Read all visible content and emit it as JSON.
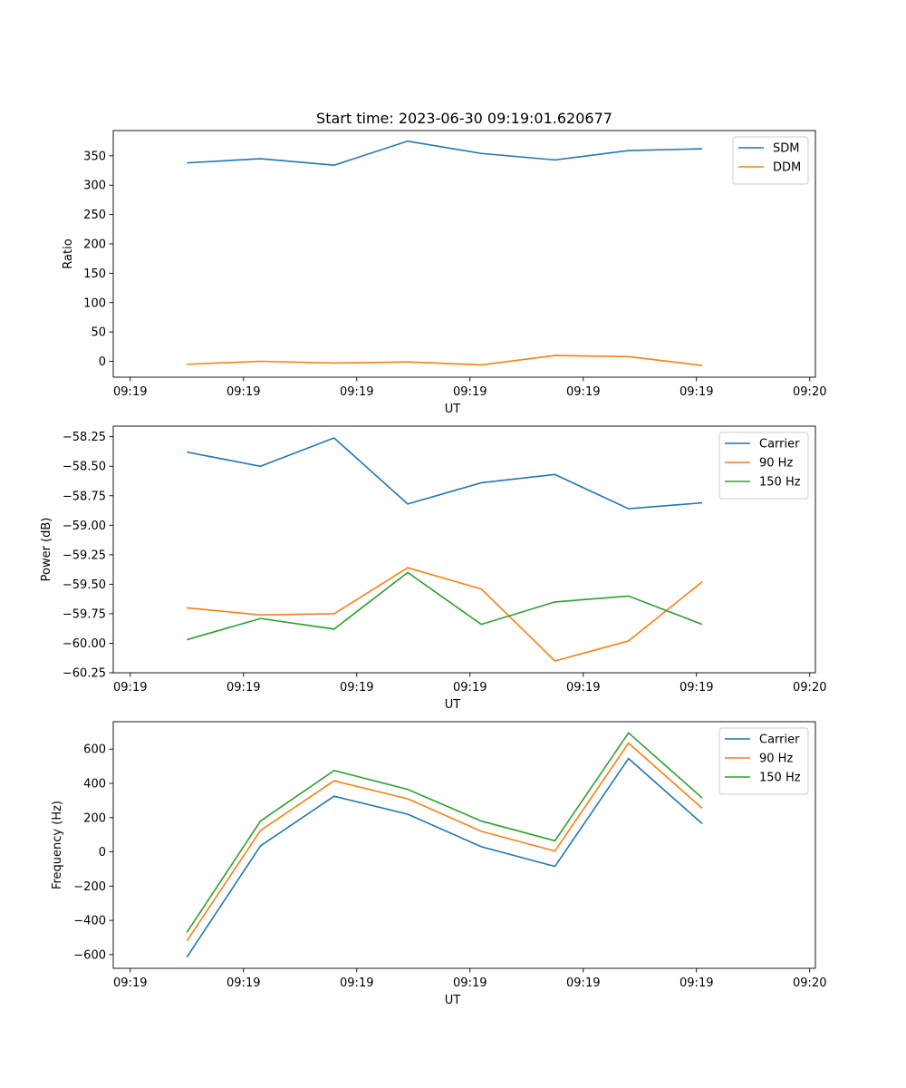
{
  "chart_data": [
    {
      "type": "line",
      "title": "Start time: 2023-06-30 09:19:01.620677",
      "xlabel": "UT",
      "ylabel": "Ratio",
      "xticks": [
        "09:19",
        "09:19",
        "09:19",
        "09:19",
        "09:19",
        "09:19",
        "09:20"
      ],
      "x": [
        0.5,
        1.15,
        1.8,
        2.45,
        3.1,
        3.75,
        4.4,
        5.05
      ],
      "xlim": [
        -0.15,
        6.05
      ],
      "ylim": [
        -27,
        393
      ],
      "yticks": [
        0,
        50,
        100,
        150,
        200,
        250,
        300,
        350
      ],
      "legend_position": "top-right",
      "series": [
        {
          "name": "SDM",
          "color": "#1f77b4",
          "values": [
            338,
            345,
            334,
            375,
            354,
            343,
            359,
            362
          ]
        },
        {
          "name": "DDM",
          "color": "#ff7f0e",
          "values": [
            -5,
            0,
            -3,
            -1,
            -6,
            10,
            8,
            -7
          ]
        }
      ]
    },
    {
      "type": "line",
      "title": "",
      "xlabel": "UT",
      "ylabel": "Power (dB)",
      "xticks": [
        "09:19",
        "09:19",
        "09:19",
        "09:19",
        "09:19",
        "09:19",
        "09:20"
      ],
      "x": [
        0.5,
        1.15,
        1.8,
        2.45,
        3.1,
        3.75,
        4.4,
        5.05
      ],
      "xlim": [
        -0.15,
        6.05
      ],
      "ylim": [
        -60.25,
        -58.16
      ],
      "yticks": [
        -60.25,
        -60.0,
        -59.75,
        -59.5,
        -59.25,
        -59.0,
        -58.75,
        -58.5,
        -58.25
      ],
      "ytick_labels": [
        "−60.25",
        "−60.00",
        "−59.75",
        "−59.50",
        "−59.25",
        "−59.00",
        "−58.75",
        "−58.50",
        "−58.25"
      ],
      "legend_position": "top-right",
      "series": [
        {
          "name": "Carrier",
          "color": "#1f77b4",
          "values": [
            -58.38,
            -58.5,
            -58.26,
            -58.82,
            -58.64,
            -58.57,
            -58.86,
            -58.81
          ]
        },
        {
          "name": "90 Hz",
          "color": "#ff7f0e",
          "values": [
            -59.7,
            -59.76,
            -59.75,
            -59.36,
            -59.54,
            -60.15,
            -59.98,
            -59.48
          ]
        },
        {
          "name": "150 Hz",
          "color": "#2ca02c",
          "values": [
            -59.97,
            -59.79,
            -59.88,
            -59.4,
            -59.84,
            -59.65,
            -59.6,
            -59.84
          ]
        }
      ]
    },
    {
      "type": "line",
      "title": "",
      "xlabel": "UT",
      "ylabel": "Frequency (Hz)",
      "xticks": [
        "09:19",
        "09:19",
        "09:19",
        "09:19",
        "09:19",
        "09:19",
        "09:20"
      ],
      "x": [
        0.5,
        1.15,
        1.8,
        2.45,
        3.1,
        3.75,
        4.4,
        5.05
      ],
      "xlim": [
        -0.15,
        6.05
      ],
      "ylim": [
        -680,
        760
      ],
      "yticks": [
        -600,
        -400,
        -200,
        0,
        200,
        400,
        600
      ],
      "ytick_labels": [
        "−600",
        "−400",
        "−200",
        "0",
        "200",
        "400",
        "600"
      ],
      "legend_position": "top-right",
      "series": [
        {
          "name": "Carrier",
          "color": "#1f77b4",
          "values": [
            -615,
            35,
            325,
            220,
            30,
            -85,
            545,
            165
          ]
        },
        {
          "name": "90 Hz",
          "color": "#ff7f0e",
          "values": [
            -520,
            125,
            415,
            310,
            120,
            5,
            635,
            255
          ]
        },
        {
          "name": "150 Hz",
          "color": "#2ca02c",
          "values": [
            -470,
            180,
            475,
            365,
            180,
            65,
            695,
            315
          ]
        }
      ]
    }
  ]
}
